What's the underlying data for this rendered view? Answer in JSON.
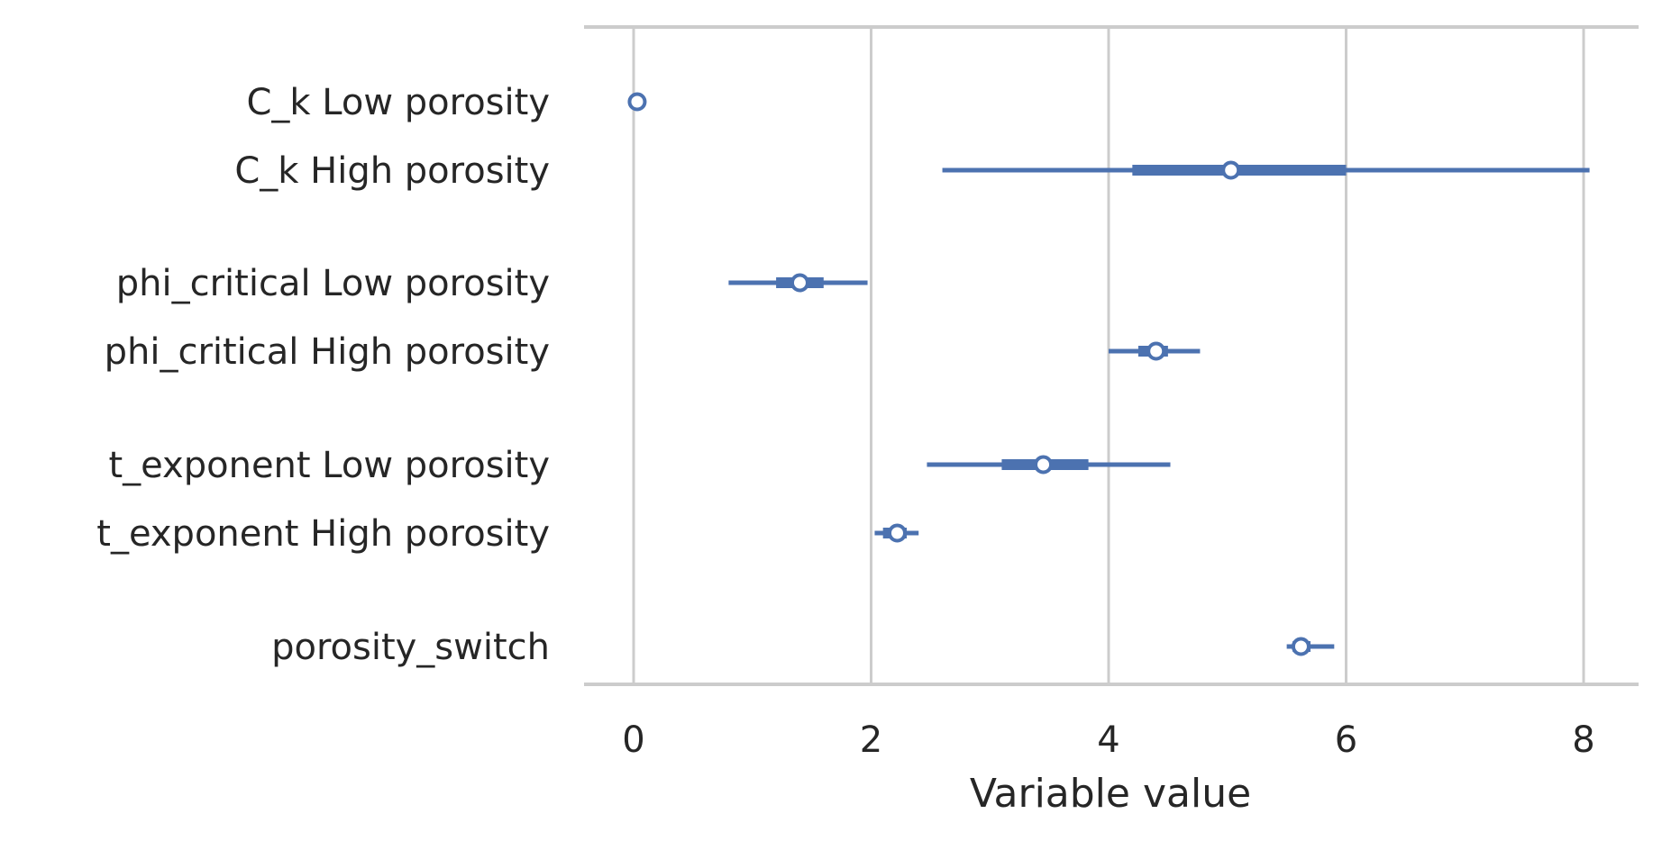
{
  "chart_data": {
    "type": "forest",
    "xlabel": "Variable value",
    "xlim": [
      -0.2,
      8.5
    ],
    "xticks": [
      0,
      2,
      4,
      6,
      8
    ],
    "xtick_labels": [
      "0",
      "2",
      "4",
      "6",
      "8"
    ],
    "grid": true,
    "colors": {
      "series": "#4c72b0",
      "grid": "#cccccc",
      "text": "#262626"
    },
    "rows": [
      {
        "label": "C_k Low porosity",
        "median": 0.03,
        "hdi_low": 0.03,
        "hdi_high": 0.03,
        "iqr_low": 0.03,
        "iqr_high": 0.03,
        "group": 0
      },
      {
        "label": "C_k High porosity",
        "median": 5.03,
        "hdi_low": 2.6,
        "hdi_high": 8.05,
        "iqr_low": 4.2,
        "iqr_high": 6.0,
        "group": 0
      },
      {
        "label": "phi_critical Low porosity",
        "median": 1.4,
        "hdi_low": 0.8,
        "hdi_high": 1.97,
        "iqr_low": 1.2,
        "iqr_high": 1.6,
        "group": 1
      },
      {
        "label": "phi_critical High porosity",
        "median": 4.4,
        "hdi_low": 4.0,
        "hdi_high": 4.77,
        "iqr_low": 4.25,
        "iqr_high": 4.5,
        "group": 1
      },
      {
        "label": "t_exponent Low porosity",
        "median": 3.45,
        "hdi_low": 2.47,
        "hdi_high": 4.52,
        "iqr_low": 3.1,
        "iqr_high": 3.83,
        "group": 2
      },
      {
        "label": "t_exponent High porosity",
        "median": 2.22,
        "hdi_low": 2.03,
        "hdi_high": 2.4,
        "iqr_low": 2.1,
        "iqr_high": 2.3,
        "group": 2
      },
      {
        "label": "porosity_switch",
        "median": 5.62,
        "hdi_low": 5.5,
        "hdi_high": 5.9,
        "iqr_low": 5.55,
        "iqr_high": 5.7,
        "group": 3
      }
    ]
  }
}
